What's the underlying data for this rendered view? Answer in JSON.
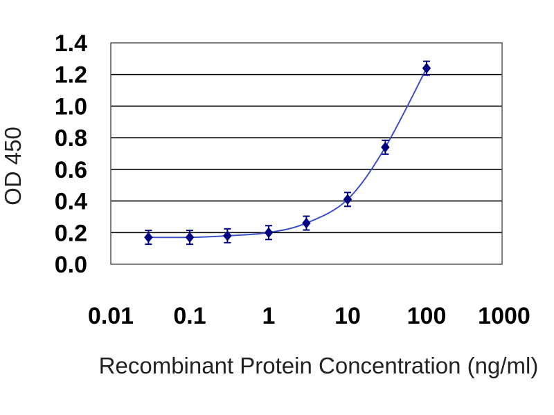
{
  "chart_data": {
    "type": "line",
    "title": "",
    "xlabel": "Recombinant Protein Concentration (ng/ml)",
    "ylabel": "OD 450",
    "x_scale": "log",
    "xlim": [
      0.01,
      1000
    ],
    "ylim": [
      0.0,
      1.4
    ],
    "x_ticks": [
      "0.01",
      "0.1",
      "1",
      "10",
      "100",
      "1000"
    ],
    "y_ticks": [
      "0.0",
      "0.2",
      "0.4",
      "0.6",
      "0.8",
      "1.0",
      "1.2",
      "1.4"
    ],
    "grid": "horizontal",
    "legend": "none",
    "series": [
      {
        "x": [
          0.03,
          0.1,
          0.3,
          1,
          3,
          10,
          30,
          100
        ],
        "y": [
          0.17,
          0.17,
          0.18,
          0.2,
          0.26,
          0.41,
          0.74,
          1.24
        ],
        "error_bars": true,
        "color": "#000080",
        "line_color": "#3a4fc8",
        "marker": "diamond"
      }
    ],
    "colors": {
      "plot_background": "#ffffff",
      "grid": "#000000",
      "frame": "#555555",
      "marker": "#000080",
      "line": "#3a4fc8"
    }
  }
}
